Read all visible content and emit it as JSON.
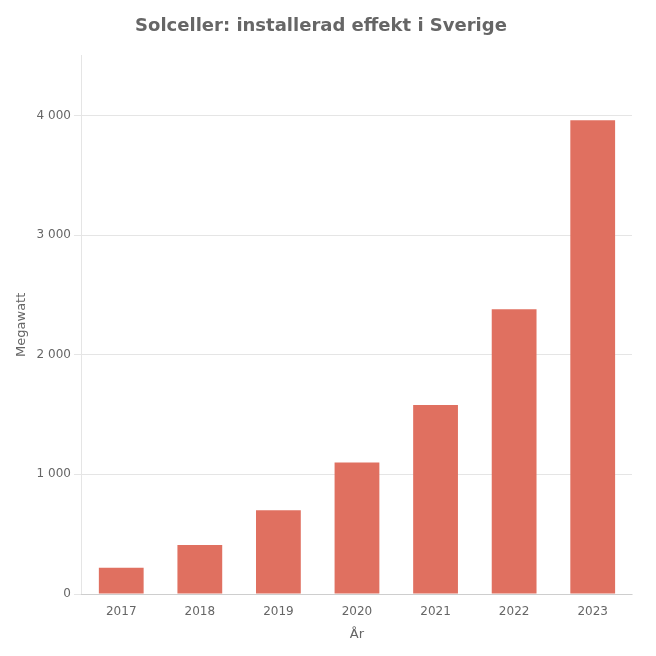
{
  "chart_data": {
    "type": "bar",
    "title": "Solceller: installerad effekt i Sverige",
    "x_label": "År",
    "y_label": "Megawatt",
    "categories": [
      "2017",
      "2018",
      "2019",
      "2020",
      "2021",
      "2022",
      "2023"
    ],
    "values": [
      220,
      410,
      700,
      1100,
      1580,
      2380,
      3960
    ],
    "color": "#E07060",
    "ylim": [
      0,
      4500
    ],
    "yticks": [
      0,
      {
        "value": 1000,
        "label": "1 000"
      },
      {
        "value": 2000,
        "label": "2 000"
      },
      {
        "value": 3000,
        "label": "3 000"
      },
      {
        "value": 4000,
        "label": "4 000"
      }
    ],
    "grid": true
  }
}
